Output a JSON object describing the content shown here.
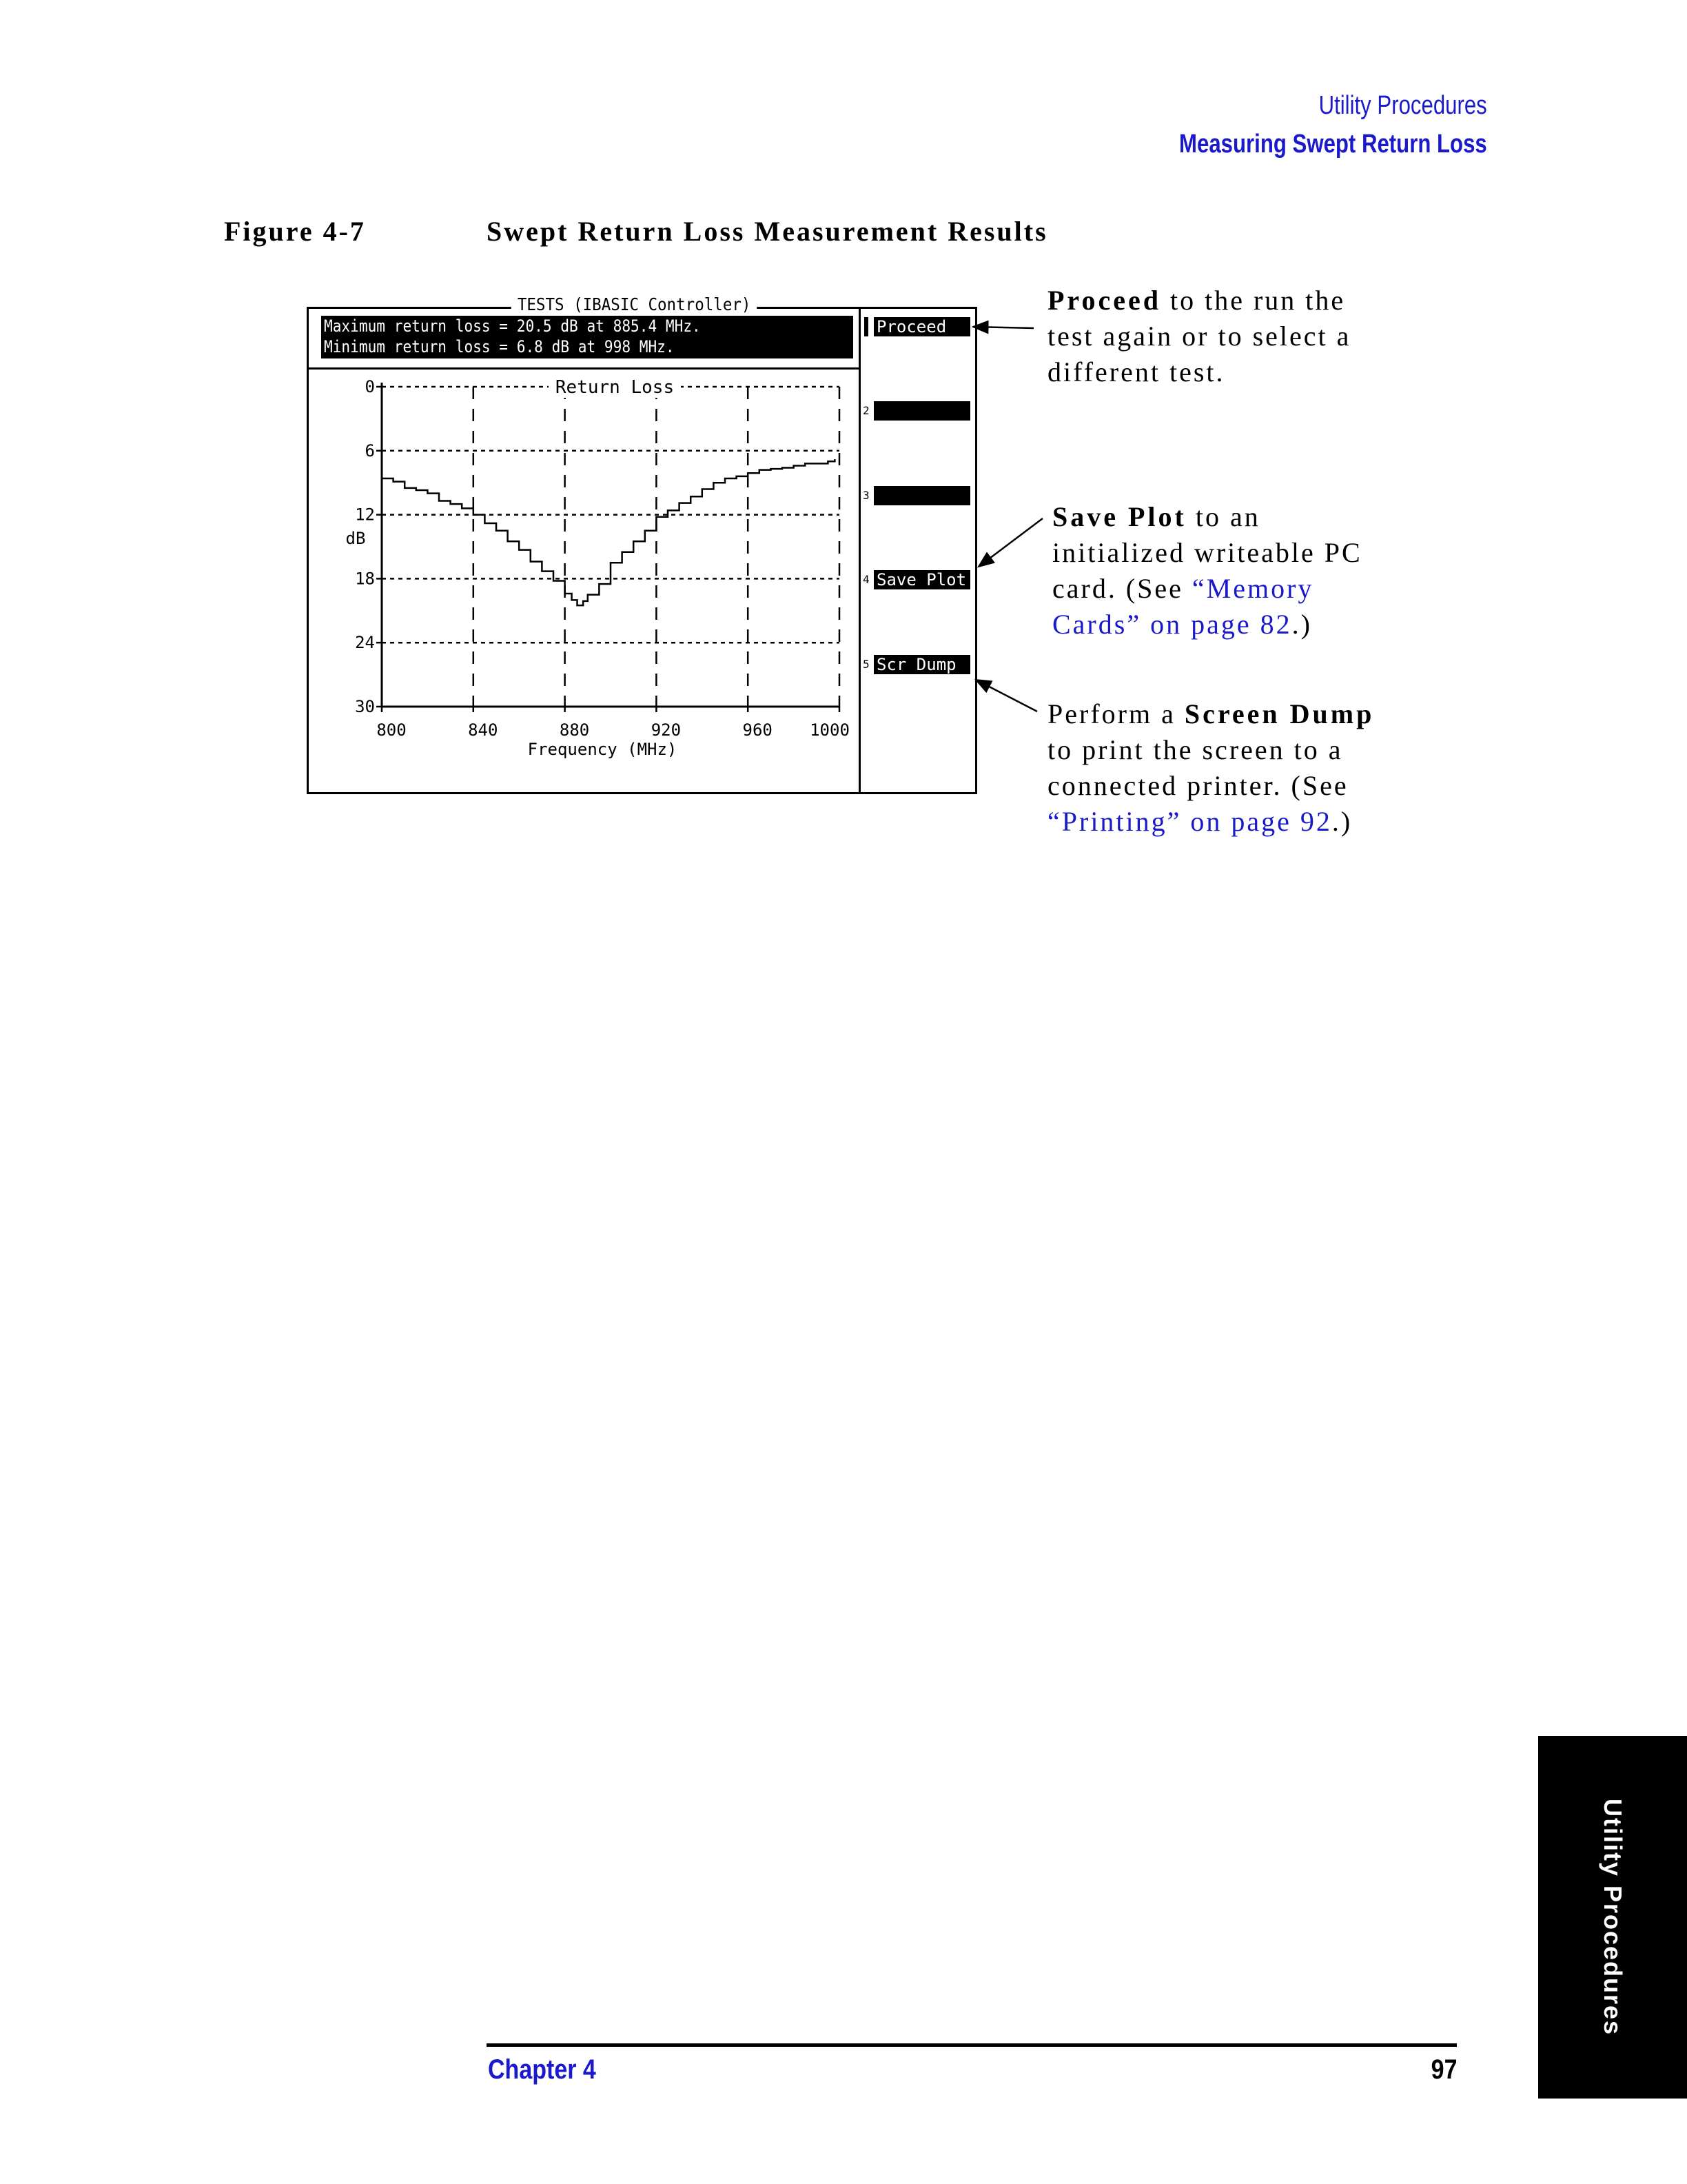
{
  "header": {
    "section": "Utility Procedures",
    "title": "Measuring Swept Return Loss"
  },
  "figure": {
    "number": "Figure 4-7",
    "title": "Swept Return Loss Measurement Results"
  },
  "instrument": {
    "screen_title": "TESTS (IBASIC Controller)",
    "message_line1": "Maximum return loss = 20.5 dB at 885.4 MHz.",
    "message_line2": "Minimum return loss = 6.8 dB at 998 MHz.",
    "softkeys": [
      {
        "number": "",
        "label": "Proceed"
      },
      {
        "number": "2",
        "label": ""
      },
      {
        "number": "3",
        "label": ""
      },
      {
        "number": "4",
        "label": "Save Plot"
      },
      {
        "number": "5",
        "label": "Scr Dump"
      }
    ]
  },
  "chart_data": {
    "type": "line",
    "title": "Return Loss",
    "xlabel": "Frequency (MHz)",
    "ylabel": "dB",
    "xlim": [
      800,
      1000
    ],
    "ylim": [
      0,
      30
    ],
    "y_inverted": true,
    "grid": true,
    "x_ticks": [
      "800",
      "840",
      "880",
      "920",
      "960",
      "1000"
    ],
    "y_ticks": [
      "0",
      "6",
      "12",
      "18",
      "24",
      "30"
    ],
    "series": [
      {
        "x": [
          800,
          805,
          810,
          815,
          820,
          825,
          830,
          835,
          840,
          845,
          850,
          855,
          860,
          865,
          870,
          875,
          880,
          883,
          885.4,
          888,
          890,
          895,
          900,
          905,
          910,
          915,
          920,
          925,
          930,
          935,
          940,
          945,
          950,
          955,
          960,
          965,
          970,
          975,
          980,
          985,
          990,
          995,
          998
        ],
        "y": [
          8.6,
          8.9,
          9.5,
          9.7,
          10.0,
          10.7,
          11.0,
          11.4,
          12.0,
          12.8,
          13.5,
          14.5,
          15.3,
          16.4,
          17.3,
          18.2,
          19.4,
          20.0,
          20.5,
          20.1,
          19.5,
          18.5,
          16.5,
          15.5,
          14.5,
          13.5,
          12.2,
          11.6,
          10.9,
          10.3,
          9.6,
          9.0,
          8.6,
          8.4,
          8.1,
          7.8,
          7.7,
          7.6,
          7.4,
          7.2,
          7.2,
          7.0,
          6.8
        ]
      }
    ]
  },
  "callouts": {
    "proceed": {
      "bold": "Proceed",
      "text1": " to the run the",
      "text2": "test again or to select a",
      "text3": "different test."
    },
    "save_plot": {
      "bold": "Save Plot",
      "text1": " to an",
      "text2": "initialized writeable PC",
      "text3a": "card. (See ",
      "link1": "“Memory",
      "link2": "Cards” on page  82",
      "text3b": ".)"
    },
    "screen_dump": {
      "text0": "Perform a ",
      "bold": "Screen Dump",
      "text2": "to print the screen to a",
      "text3": "connected printer. (See",
      "link": "“Printing” on page  92",
      "text4": ".)"
    }
  },
  "footer": {
    "chapter": "Chapter 4",
    "page": "97"
  },
  "side_tab": {
    "label": "Utility Procedures"
  },
  "colors": {
    "link": "#1a1acc",
    "text": "#000000"
  }
}
